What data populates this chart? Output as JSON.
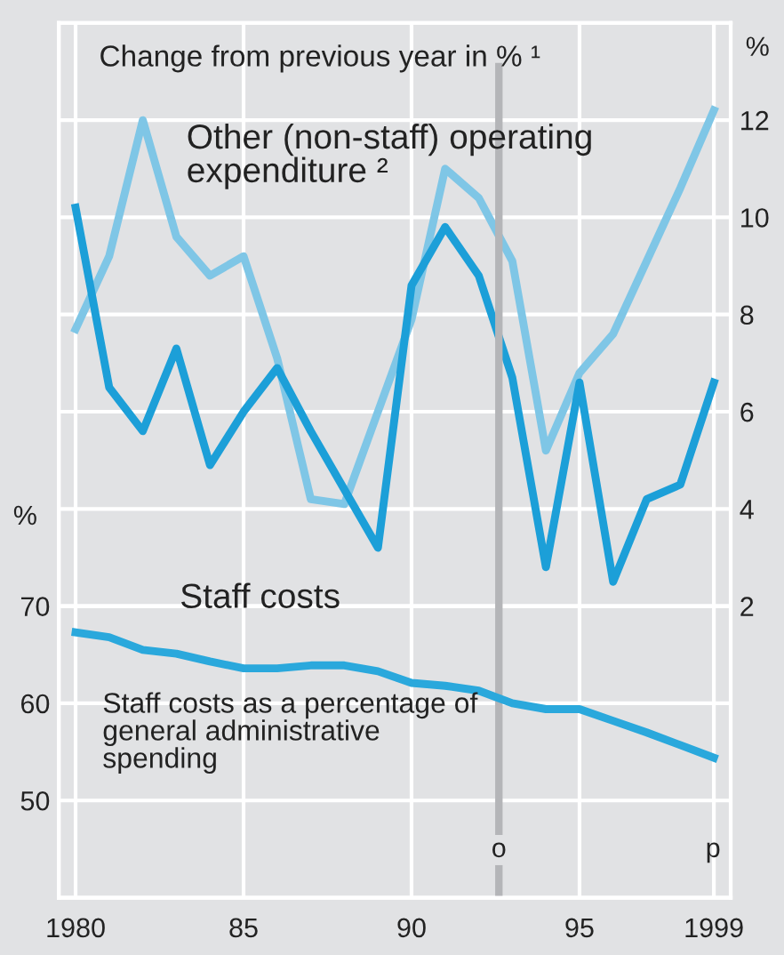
{
  "chart_data": {
    "type": "line",
    "title": "Change from previous year in % ¹",
    "ylabel": "%",
    "y2label": "%",
    "x": [
      1980,
      1981,
      1982,
      1983,
      1984,
      1985,
      1986,
      1987,
      1988,
      1989,
      1990,
      1991,
      1992,
      1993,
      1994,
      1995,
      1996,
      1997,
      1998,
      1999
    ],
    "series": [
      {
        "name": "Other (non-staff) operating expenditure ²",
        "color": "#7fc6e6",
        "axis": "y2",
        "values": [
          7.7,
          9.2,
          12.0,
          9.6,
          8.8,
          9.2,
          7.1,
          4.2,
          4.1,
          6.0,
          7.9,
          11.0,
          10.4,
          9.1,
          5.2,
          6.8,
          7.6,
          9.1,
          10.6,
          12.2
        ]
      },
      {
        "name": "Staff costs",
        "color": "#1c9fd8",
        "axis": "y2",
        "values": [
          10.2,
          6.5,
          5.6,
          7.3,
          4.9,
          6.0,
          6.9,
          5.6,
          4.4,
          3.2,
          8.6,
          9.8,
          8.8,
          6.7,
          2.8,
          6.6,
          2.5,
          4.2,
          4.5,
          6.6
        ]
      },
      {
        "name": "Staff costs as a percentage of general administrative spending",
        "color": "#2aa8dc",
        "values": [
          67.3,
          66.8,
          65.5,
          65.1,
          64.3,
          63.6,
          63.6,
          63.9,
          63.9,
          63.3,
          62.1,
          61.8,
          61.3,
          60.0,
          59.4,
          59.4,
          58.2,
          57.0,
          55.7,
          54.4
        ]
      }
    ],
    "xlim": [
      1979.5,
      1999.5
    ],
    "xticks": [
      1980,
      {
        "value": 1985,
        "label": "85"
      },
      {
        "value": 1990,
        "label": "90"
      },
      {
        "value": 1995,
        "label": "95"
      },
      1999
    ],
    "ylim": [
      40,
      130
    ],
    "yticks": [
      50,
      60,
      70
    ],
    "y2lim": [
      -4,
      14
    ],
    "y2ticks": [
      2,
      4,
      6,
      8,
      10,
      12
    ],
    "ref_lines": [
      {
        "axis": "x",
        "value": 1992.6,
        "label": "o",
        "color": "#b4b5b8"
      }
    ],
    "annotations": [
      "p"
    ],
    "grid": true,
    "legend": false,
    "marker": "none",
    "line_style": "solid"
  }
}
